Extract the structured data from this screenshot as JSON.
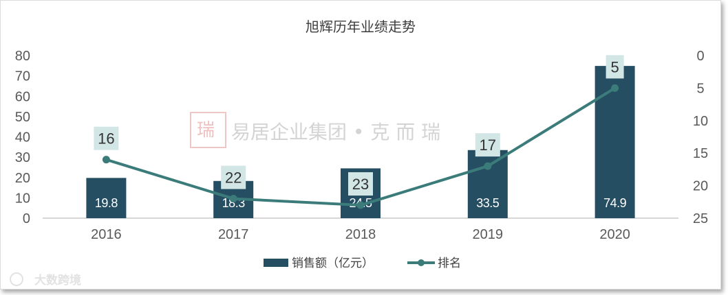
{
  "chart_data": {
    "type": "bar",
    "title": "旭辉历年业绩走势",
    "categories": [
      "2016",
      "2017",
      "2018",
      "2019",
      "2020"
    ],
    "series": [
      {
        "name": "销售额（亿元）",
        "type": "bar",
        "axis": "left",
        "values": [
          19.8,
          18.3,
          24.5,
          33.5,
          74.9
        ]
      },
      {
        "name": "排名",
        "type": "line",
        "axis": "right",
        "values": [
          16,
          22,
          23,
          17,
          5
        ]
      }
    ],
    "y_left": {
      "lim": [
        0,
        80
      ],
      "ticks": [
        0,
        10,
        20,
        30,
        40,
        50,
        60,
        70,
        80
      ]
    },
    "y_right": {
      "lim": [
        0,
        25
      ],
      "ticks": [
        0,
        5,
        10,
        15,
        20,
        25
      ],
      "inverted": true
    },
    "grid": false,
    "legend_position": "bottom"
  },
  "colors": {
    "bar": "#264e63",
    "line": "#3b7c7a",
    "rank_label_bg": "#d3e6e6",
    "axis": "#c8c8c8"
  },
  "legend": {
    "bar_label": "销售额（亿元）",
    "line_label": "排名"
  },
  "watermark": {
    "text": "易居企业集团 • 克 而 瑞",
    "seal_icon": "kerui-seal-icon",
    "corner_text": "大数跨境"
  }
}
